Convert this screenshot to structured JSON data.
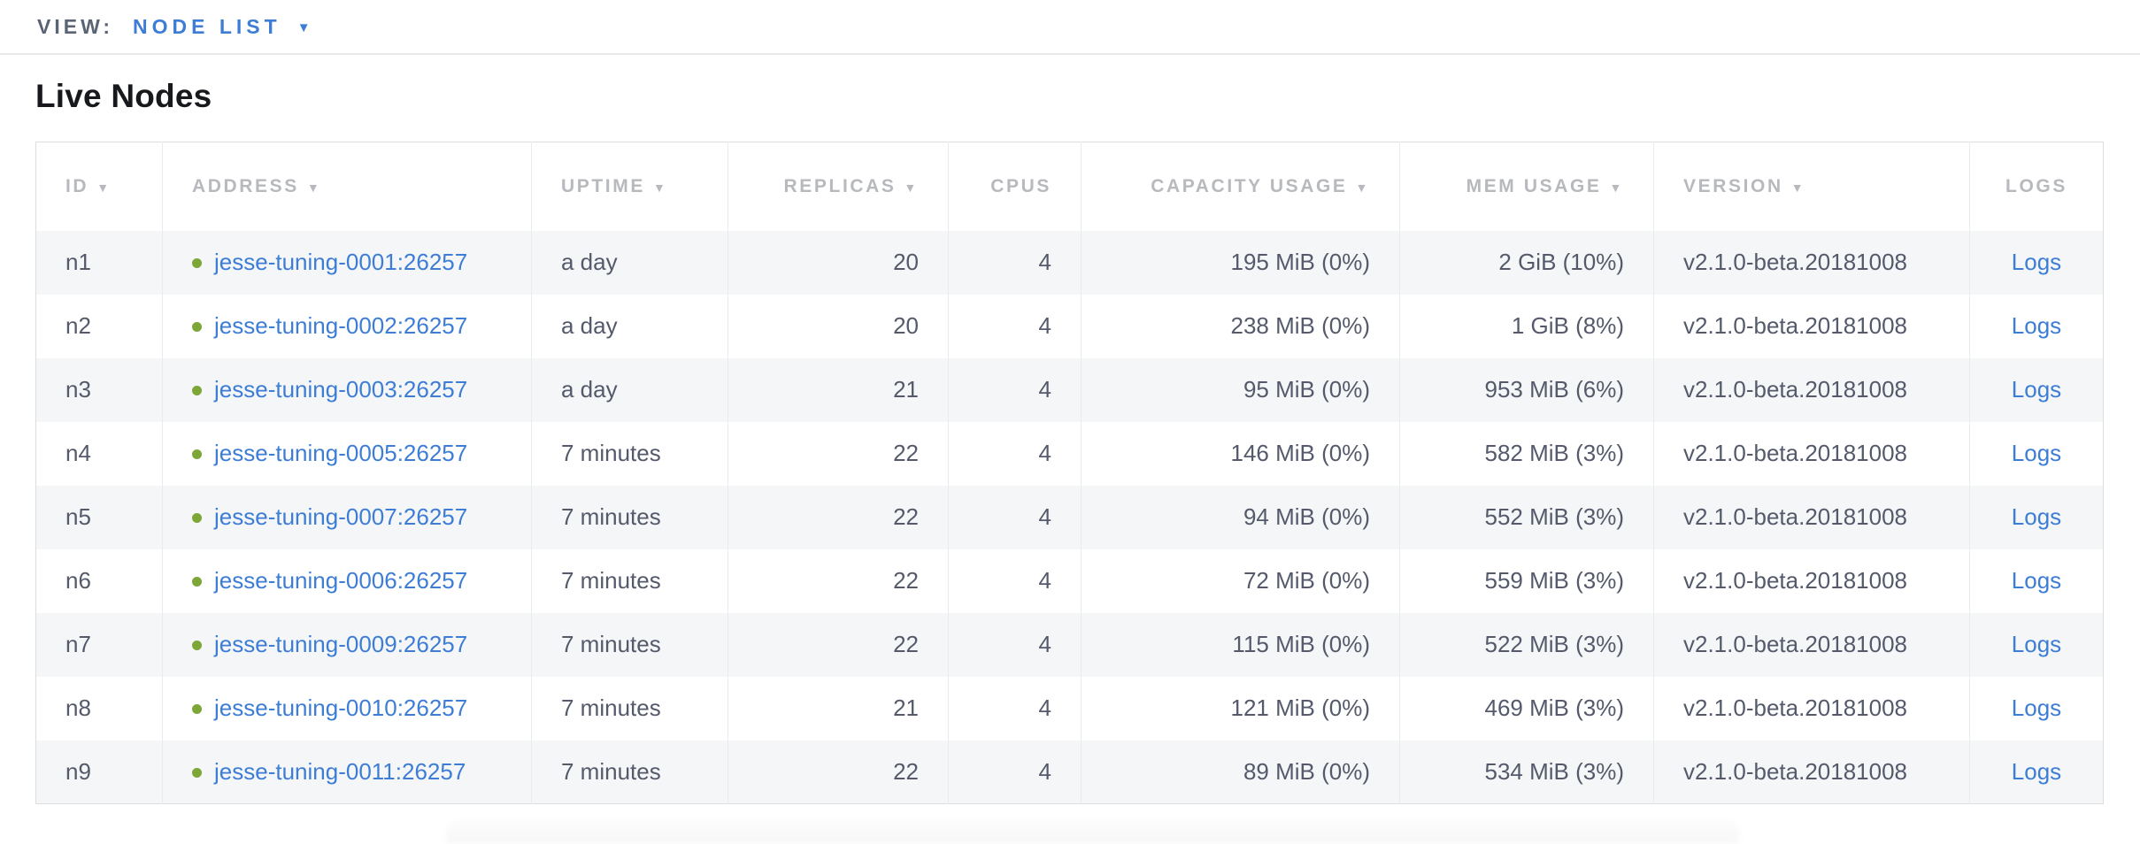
{
  "view_bar": {
    "label": "VIEW:",
    "selected": "NODE LIST",
    "caret_icon": "▼"
  },
  "page": {
    "title": "Live Nodes"
  },
  "colors": {
    "link_blue": "#3d7dd6",
    "status_green_healthy": "#7ca636",
    "header_gray": "#b7b9bd",
    "cell_text": "#545a6b",
    "row_stripe": "#f5f6f7"
  },
  "table": {
    "sort_icon": "▼",
    "columns": [
      {
        "key": "id",
        "label": "ID",
        "sorted": true
      },
      {
        "key": "address",
        "label": "ADDRESS",
        "sorted": true
      },
      {
        "key": "uptime",
        "label": "UPTIME",
        "sorted": true
      },
      {
        "key": "replicas",
        "label": "REPLICAS",
        "sorted": true
      },
      {
        "key": "cpus",
        "label": "CPUS",
        "sorted": false
      },
      {
        "key": "capacity",
        "label": "CAPACITY USAGE",
        "sorted": true
      },
      {
        "key": "mem",
        "label": "MEM USAGE",
        "sorted": true
      },
      {
        "key": "version",
        "label": "VERSION",
        "sorted": true
      },
      {
        "key": "logs",
        "label": "LOGS",
        "sorted": false
      }
    ],
    "rows": [
      {
        "id": "n1",
        "status": "healthy",
        "address": "jesse-tuning-0001:26257",
        "uptime": "a day",
        "replicas": "20",
        "cpus": "4",
        "capacity": "195 MiB (0%)",
        "mem": "2 GiB (10%)",
        "version": "v2.1.0-beta.20181008",
        "logs": "Logs"
      },
      {
        "id": "n2",
        "status": "healthy",
        "address": "jesse-tuning-0002:26257",
        "uptime": "a day",
        "replicas": "20",
        "cpus": "4",
        "capacity": "238 MiB (0%)",
        "mem": "1 GiB (8%)",
        "version": "v2.1.0-beta.20181008",
        "logs": "Logs"
      },
      {
        "id": "n3",
        "status": "healthy",
        "address": "jesse-tuning-0003:26257",
        "uptime": "a day",
        "replicas": "21",
        "cpus": "4",
        "capacity": "95 MiB (0%)",
        "mem": "953 MiB (6%)",
        "version": "v2.1.0-beta.20181008",
        "logs": "Logs"
      },
      {
        "id": "n4",
        "status": "healthy",
        "address": "jesse-tuning-0005:26257",
        "uptime": "7 minutes",
        "replicas": "22",
        "cpus": "4",
        "capacity": "146 MiB (0%)",
        "mem": "582 MiB (3%)",
        "version": "v2.1.0-beta.20181008",
        "logs": "Logs"
      },
      {
        "id": "n5",
        "status": "healthy",
        "address": "jesse-tuning-0007:26257",
        "uptime": "7 minutes",
        "replicas": "22",
        "cpus": "4",
        "capacity": "94 MiB (0%)",
        "mem": "552 MiB (3%)",
        "version": "v2.1.0-beta.20181008",
        "logs": "Logs"
      },
      {
        "id": "n6",
        "status": "healthy",
        "address": "jesse-tuning-0006:26257",
        "uptime": "7 minutes",
        "replicas": "22",
        "cpus": "4",
        "capacity": "72 MiB (0%)",
        "mem": "559 MiB (3%)",
        "version": "v2.1.0-beta.20181008",
        "logs": "Logs"
      },
      {
        "id": "n7",
        "status": "healthy",
        "address": "jesse-tuning-0009:26257",
        "uptime": "7 minutes",
        "replicas": "22",
        "cpus": "4",
        "capacity": "115 MiB (0%)",
        "mem": "522 MiB (3%)",
        "version": "v2.1.0-beta.20181008",
        "logs": "Logs"
      },
      {
        "id": "n8",
        "status": "healthy",
        "address": "jesse-tuning-0010:26257",
        "uptime": "7 minutes",
        "replicas": "21",
        "cpus": "4",
        "capacity": "121 MiB (0%)",
        "mem": "469 MiB (3%)",
        "version": "v2.1.0-beta.20181008",
        "logs": "Logs"
      },
      {
        "id": "n9",
        "status": "healthy",
        "address": "jesse-tuning-0011:26257",
        "uptime": "7 minutes",
        "replicas": "22",
        "cpus": "4",
        "capacity": "89 MiB (0%)",
        "mem": "534 MiB (3%)",
        "version": "v2.1.0-beta.20181008",
        "logs": "Logs"
      }
    ]
  }
}
